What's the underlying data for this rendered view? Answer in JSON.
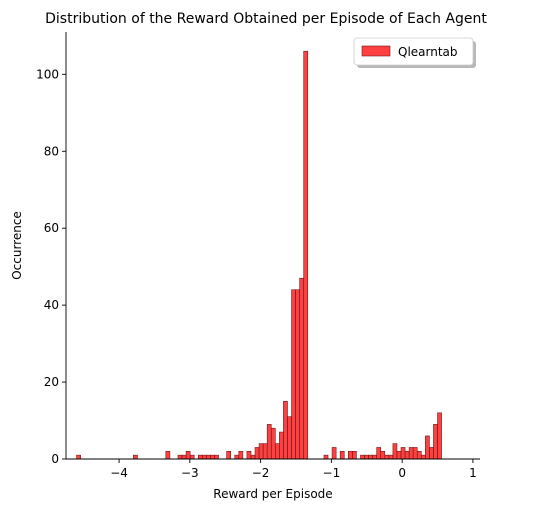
{
  "chart_data": {
    "type": "histogram",
    "title": "Distribution of the Reward Obtained per Episode of Each Agent",
    "xlabel": "Reward per Episode",
    "ylabel": "Occurrence",
    "xlim": [
      -4.75,
      1.1
    ],
    "ylim": [
      0,
      111
    ],
    "xticks": [
      -4,
      -3,
      -2,
      -1,
      0,
      1
    ],
    "xtick_labels": [
      "−4",
      "−3",
      "−2",
      "−1",
      "0",
      "1"
    ],
    "yticks": [
      0,
      20,
      40,
      60,
      80,
      100
    ],
    "ytick_labels": [
      "0",
      "20",
      "40",
      "60",
      "80",
      "100"
    ],
    "bin_start": -4.6,
    "bin_width": 0.0573,
    "counts": [
      1,
      0,
      0,
      0,
      0,
      0,
      0,
      0,
      0,
      0,
      0,
      0,
      0,
      0,
      1,
      0,
      0,
      0,
      0,
      0,
      0,
      0,
      2,
      0,
      0,
      1,
      1,
      2,
      1,
      0,
      1,
      1,
      1,
      1,
      1,
      0,
      0,
      2,
      0,
      1,
      2,
      0,
      2,
      1,
      3,
      4,
      4,
      9,
      8,
      4,
      7,
      15,
      11,
      44,
      44,
      47,
      106,
      0,
      0,
      0,
      0,
      1,
      0,
      3,
      0,
      2,
      0,
      2,
      2,
      0,
      1,
      1,
      1,
      1,
      3,
      2,
      1,
      1,
      4,
      2,
      3,
      2,
      3,
      3,
      2,
      1,
      6,
      3,
      9,
      12
    ],
    "series": [
      {
        "name": "Qlearntab",
        "color": "#ff0000",
        "alpha": 0.75,
        "edge_color": "#6e1a1a"
      }
    ],
    "legend_position": "top-right",
    "spines": {
      "top": false,
      "right": false
    }
  }
}
